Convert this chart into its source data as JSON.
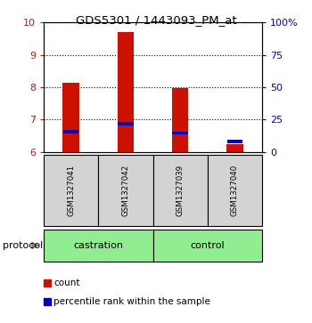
{
  "title": "GDS5301 / 1443093_PM_at",
  "samples": [
    "GSM1327041",
    "GSM1327042",
    "GSM1327039",
    "GSM1327040"
  ],
  "groups": [
    "castration",
    "castration",
    "control",
    "control"
  ],
  "group_labels": [
    "castration",
    "control"
  ],
  "bar_color": "#CC1100",
  "percentile_color": "#0000CC",
  "count_values": [
    8.15,
    9.7,
    7.97,
    6.25
  ],
  "percentile_values": [
    6.63,
    6.87,
    6.58,
    6.32
  ],
  "ylim_left": [
    6,
    10
  ],
  "ylim_right": [
    0,
    100
  ],
  "yticks_left": [
    6,
    7,
    8,
    9,
    10
  ],
  "yticks_right": [
    0,
    25,
    50,
    75,
    100
  ],
  "ytick_labels_right": [
    "0",
    "25",
    "50",
    "75",
    "100%"
  ],
  "bar_width": 0.3,
  "background_color": "#ffffff",
  "plot_bg_color": "#ffffff",
  "left_tick_color": "#CC1100",
  "right_tick_color": "#0000CC",
  "legend_count": "count",
  "legend_percentile": "percentile rank within the sample",
  "protocol_label": "protocol",
  "sample_box_color": "#d3d3d3",
  "group_box_color": "#90EE90"
}
